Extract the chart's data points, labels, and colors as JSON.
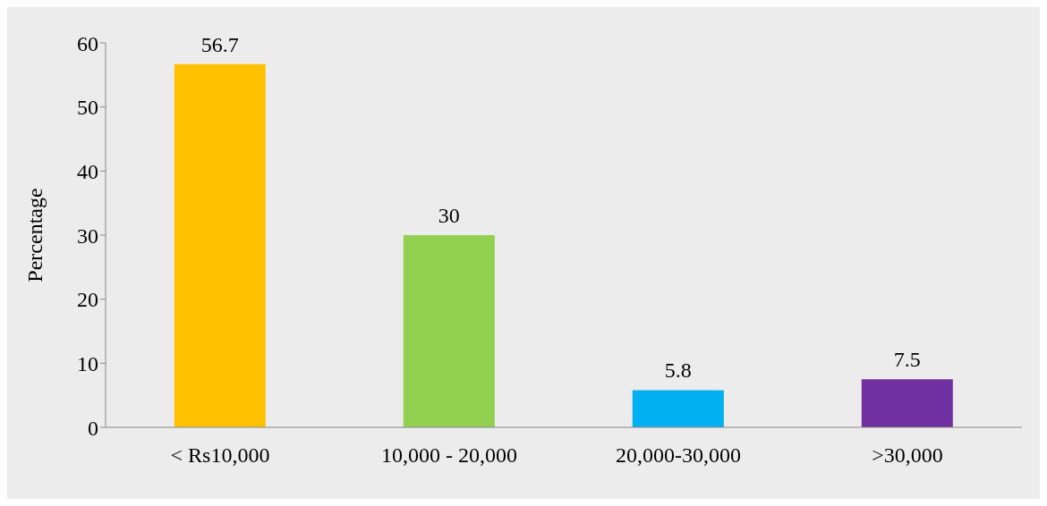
{
  "chart_data": {
    "type": "bar",
    "ylabel": "Percentage",
    "categories": [
      "<  Rs10,000",
      "10,000 - 20,000",
      "20,000-30,000",
      ">30,000"
    ],
    "values": [
      56.7,
      30,
      5.8,
      7.5
    ],
    "colors": [
      "#ffc000",
      "#92d050",
      "#00b0f0",
      "#7030a0"
    ],
    "ylim": [
      0,
      60
    ],
    "yticks": [
      0,
      10,
      20,
      30,
      40,
      50,
      60
    ],
    "grid": false,
    "data_labels": true
  }
}
